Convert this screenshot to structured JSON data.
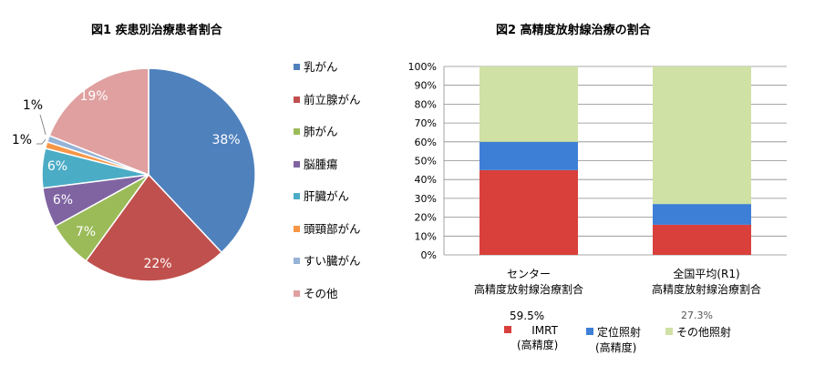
{
  "chart_data": [
    {
      "type": "pie",
      "title": "図1  疾患別治療患者割合",
      "categories": [
        "乳がん",
        "前立腺がん",
        "肺がん",
        "脳腫瘍",
        "肝臓がん",
        "頭頸部がん",
        "すい臓がん",
        "その他"
      ],
      "values": [
        38,
        22,
        7,
        6,
        6,
        1,
        1,
        19
      ],
      "data_labels": [
        "38%",
        "22%",
        "7%",
        "6%",
        "6%",
        "1%",
        "1%",
        "19%"
      ],
      "colors": [
        "#4F81BD",
        "#C0504D",
        "#9BBB59",
        "#8064A2",
        "#4BACC6",
        "#F79646",
        "#95B3D7",
        "#E0A0A0"
      ],
      "legend": "right"
    },
    {
      "type": "bar",
      "stacked": true,
      "title": "図2  高精度放射線治療の割合",
      "categories": [
        "センター\n高精度放射線治療割合",
        "全国平均(R1)\n高精度放射線治療割合"
      ],
      "series": [
        {
          "name": "IMRT\n(高精度)",
          "values": [
            45,
            16
          ],
          "color": "#D9403C"
        },
        {
          "name": "定位照射\n(高精度)",
          "values": [
            15,
            11
          ],
          "color": "#3D7FD6"
        },
        {
          "name": "その他照射",
          "values": [
            40,
            73
          ],
          "color": "#CFE1A4"
        }
      ],
      "ylim": [
        0,
        100
      ],
      "yticks": [
        "0%",
        "10%",
        "20%",
        "30%",
        "40%",
        "50%",
        "60%",
        "70%",
        "80%",
        "90%",
        "100%"
      ],
      "grid": true,
      "legend": "bottom",
      "annotations": [
        "59.5%",
        "27.3%"
      ]
    }
  ]
}
